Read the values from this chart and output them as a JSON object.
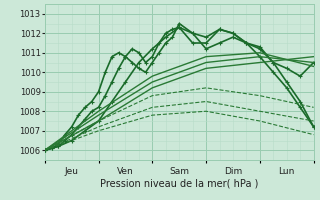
{
  "xlabel": "Pression niveau de la mer( hPa )",
  "bg_color": "#cce8d8",
  "grid_color_major": "#99ccb0",
  "grid_color_minor": "#b8ddc8",
  "ylim": [
    1005.5,
    1013.5
  ],
  "yticks": [
    1006,
    1007,
    1008,
    1009,
    1010,
    1011,
    1012,
    1013
  ],
  "xmax": 120,
  "day_ticks": [
    0,
    24,
    48,
    72,
    96,
    120
  ],
  "day_labels": [
    "Jeu",
    "Ven",
    "Sam",
    "Dim",
    "Lun"
  ],
  "series": [
    {
      "x": [
        0,
        3,
        6,
        9,
        12,
        15,
        18,
        21,
        24,
        27,
        30,
        33,
        36,
        39,
        42,
        45,
        48,
        51,
        54,
        57,
        60,
        66,
        72,
        78,
        84,
        90,
        96,
        102,
        108,
        114,
        120
      ],
      "y": [
        1006.0,
        1006.1,
        1006.3,
        1006.8,
        1007.2,
        1007.8,
        1008.2,
        1008.5,
        1009.0,
        1010.0,
        1010.8,
        1011.0,
        1010.8,
        1011.2,
        1011.0,
        1010.5,
        1010.8,
        1011.5,
        1012.0,
        1012.2,
        1012.3,
        1011.5,
        1011.5,
        1012.2,
        1012.0,
        1011.5,
        1011.3,
        1010.5,
        1010.2,
        1009.8,
        1010.5
      ],
      "style": "-",
      "marker": "+",
      "lw": 1.2,
      "color": "#1a6b2a",
      "ms": 3.5
    },
    {
      "x": [
        0,
        3,
        6,
        9,
        12,
        15,
        18,
        21,
        24,
        27,
        30,
        33,
        36,
        39,
        42,
        45,
        48,
        51,
        54,
        57,
        60,
        66,
        72,
        78,
        84,
        90,
        96,
        102,
        108,
        114,
        120
      ],
      "y": [
        1006.0,
        1006.1,
        1006.2,
        1006.5,
        1006.8,
        1007.2,
        1007.6,
        1008.0,
        1008.2,
        1008.8,
        1009.5,
        1010.2,
        1010.8,
        1010.5,
        1010.2,
        1010.0,
        1010.5,
        1011.0,
        1011.5,
        1011.8,
        1012.5,
        1012.0,
        1011.2,
        1011.5,
        1011.8,
        1011.5,
        1010.8,
        1010.0,
        1009.2,
        1008.2,
        1007.2
      ],
      "style": "-",
      "marker": "+",
      "lw": 1.2,
      "color": "#1a6b2a",
      "ms": 3.5
    },
    {
      "x": [
        0,
        6,
        12,
        18,
        24,
        30,
        36,
        42,
        48,
        54,
        60,
        66,
        72,
        78,
        84,
        90,
        96,
        102,
        108,
        114,
        120
      ],
      "y": [
        1006.0,
        1006.2,
        1006.5,
        1007.0,
        1007.5,
        1008.5,
        1009.5,
        1010.5,
        1011.2,
        1011.8,
        1012.3,
        1012.0,
        1011.8,
        1012.2,
        1012.0,
        1011.5,
        1011.2,
        1010.5,
        1009.5,
        1008.5,
        1007.2
      ],
      "style": "-",
      "marker": "+",
      "lw": 1.2,
      "color": "#1a6b2a",
      "ms": 3.5
    },
    {
      "x": [
        0,
        24,
        48,
        72,
        96,
        120
      ],
      "y": [
        1006.0,
        1008.0,
        1009.8,
        1010.8,
        1011.0,
        1010.3
      ],
      "style": "-",
      "marker": null,
      "lw": 1.0,
      "color": "#2a7a35",
      "ms": 0
    },
    {
      "x": [
        0,
        24,
        48,
        72,
        96,
        120
      ],
      "y": [
        1006.0,
        1007.8,
        1009.5,
        1010.5,
        1010.8,
        1010.5
      ],
      "style": "-",
      "marker": null,
      "lw": 1.0,
      "color": "#2a7a35",
      "ms": 0
    },
    {
      "x": [
        0,
        24,
        48,
        72,
        96,
        120
      ],
      "y": [
        1006.0,
        1007.5,
        1009.2,
        1010.2,
        1010.5,
        1010.8
      ],
      "style": "-",
      "marker": null,
      "lw": 1.0,
      "color": "#2a7a35",
      "ms": 0
    },
    {
      "x": [
        0,
        24,
        48,
        72,
        96,
        120
      ],
      "y": [
        1006.0,
        1007.5,
        1008.8,
        1009.2,
        1008.8,
        1008.2
      ],
      "style": "--",
      "marker": null,
      "lw": 0.8,
      "color": "#2a7a35",
      "ms": 0
    },
    {
      "x": [
        0,
        24,
        48,
        72,
        96,
        120
      ],
      "y": [
        1006.0,
        1007.2,
        1008.2,
        1008.5,
        1008.0,
        1007.5
      ],
      "style": "--",
      "marker": null,
      "lw": 0.8,
      "color": "#2a7a35",
      "ms": 0
    },
    {
      "x": [
        0,
        24,
        48,
        72,
        96,
        120
      ],
      "y": [
        1006.0,
        1007.0,
        1007.8,
        1008.0,
        1007.5,
        1006.8
      ],
      "style": "--",
      "marker": null,
      "lw": 0.8,
      "color": "#2a7a35",
      "ms": 0
    }
  ]
}
